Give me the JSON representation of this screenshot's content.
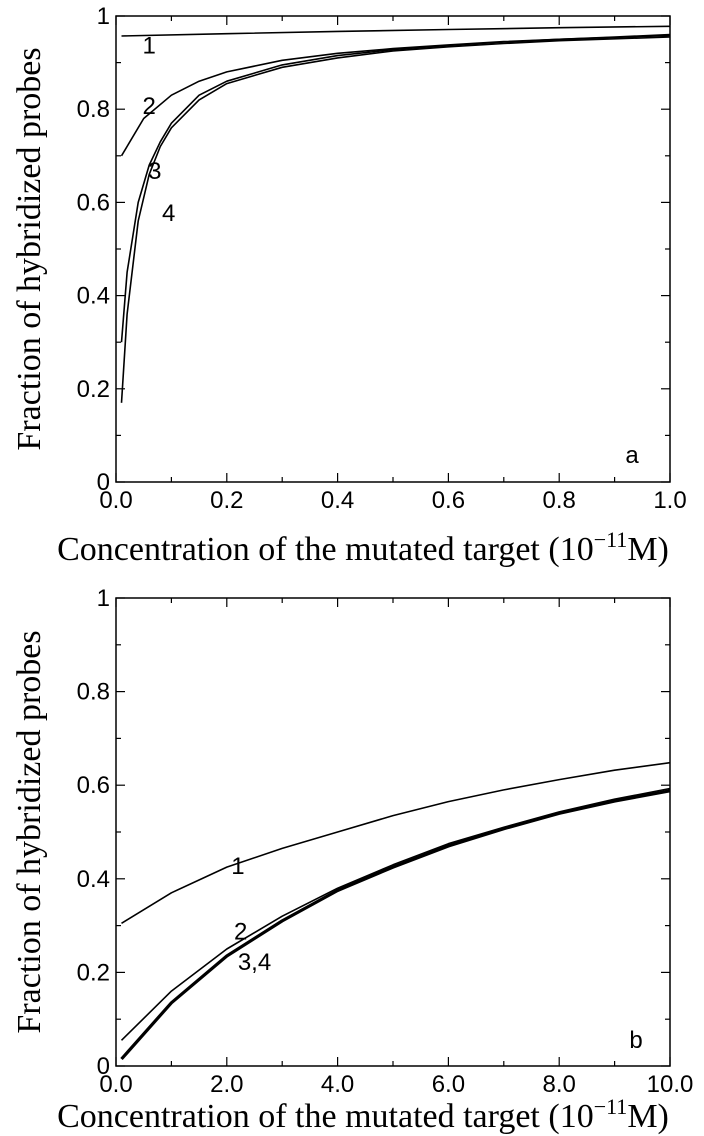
{
  "chart_data": [
    {
      "type": "line",
      "panel_label": "a",
      "xlabel_main": "Concentration of the mutated target (10",
      "xlabel_exp": "−11",
      "xlabel_tail": "M)",
      "ylabel": "Fraction of hybridized probes",
      "xlim": [
        0,
        1.0
      ],
      "ylim": [
        0,
        1
      ],
      "x_ticks": [
        "0.0",
        "0.2",
        "0.4",
        "0.6",
        "0.8",
        "1.0"
      ],
      "x_tick_values": [
        0,
        0.2,
        0.4,
        0.6,
        0.8,
        1.0
      ],
      "y_ticks": [
        "0",
        "0.2",
        "0.4",
        "0.6",
        "0.8",
        "1"
      ],
      "y_tick_values": [
        0,
        0.2,
        0.4,
        0.6,
        0.8,
        1
      ],
      "series": [
        {
          "name": "1",
          "x": [
            0.01,
            0.2,
            0.4,
            0.6,
            0.8,
            1.0
          ],
          "values": [
            0.957,
            0.962,
            0.967,
            0.971,
            0.975,
            0.978
          ]
        },
        {
          "name": "2",
          "x": [
            0.01,
            0.05,
            0.1,
            0.15,
            0.2,
            0.3,
            0.4,
            0.5,
            0.6,
            0.7,
            0.8,
            0.9,
            1.0
          ],
          "values": [
            0.7,
            0.78,
            0.83,
            0.86,
            0.88,
            0.905,
            0.92,
            0.93,
            0.938,
            0.945,
            0.95,
            0.955,
            0.96
          ]
        },
        {
          "name": "3",
          "x": [
            0.01,
            0.02,
            0.04,
            0.06,
            0.08,
            0.1,
            0.15,
            0.2,
            0.3,
            0.4,
            0.5,
            0.6,
            0.7,
            0.8,
            0.9,
            1.0
          ],
          "values": [
            0.3,
            0.45,
            0.6,
            0.68,
            0.73,
            0.77,
            0.83,
            0.86,
            0.895,
            0.915,
            0.928,
            0.937,
            0.944,
            0.95,
            0.954,
            0.958
          ]
        },
        {
          "name": "4",
          "x": [
            0.01,
            0.02,
            0.04,
            0.06,
            0.08,
            0.1,
            0.15,
            0.2,
            0.3,
            0.4,
            0.5,
            0.6,
            0.7,
            0.8,
            0.9,
            1.0
          ],
          "values": [
            0.17,
            0.36,
            0.56,
            0.66,
            0.72,
            0.76,
            0.82,
            0.855,
            0.89,
            0.91,
            0.925,
            0.934,
            0.941,
            0.947,
            0.951,
            0.955
          ]
        }
      ],
      "curve_labels": [
        {
          "text": "1",
          "x": 0.06,
          "y": 0.92
        },
        {
          "text": "2",
          "x": 0.06,
          "y": 0.79
        },
        {
          "text": "3",
          "x": 0.07,
          "y": 0.65
        },
        {
          "text": "4",
          "x": 0.095,
          "y": 0.56
        }
      ]
    },
    {
      "type": "line",
      "panel_label": "b",
      "xlabel_main": "Concentration of the mutated target (10",
      "xlabel_exp": "−11",
      "xlabel_tail": "M)",
      "ylabel": "Fraction of hybridized probes",
      "xlim": [
        0,
        10.0
      ],
      "ylim": [
        0,
        1
      ],
      "x_ticks": [
        "0.0",
        "2.0",
        "4.0",
        "6.0",
        "8.0",
        "10.0"
      ],
      "x_tick_values": [
        0,
        2,
        4,
        6,
        8,
        10
      ],
      "y_ticks": [
        "0",
        "0.2",
        "0.4",
        "0.6",
        "0.8",
        "1"
      ],
      "y_tick_values": [
        0,
        0.2,
        0.4,
        0.6,
        0.8,
        1
      ],
      "series": [
        {
          "name": "1",
          "x": [
            0.1,
            1,
            2,
            3,
            4,
            5,
            6,
            7,
            8,
            9,
            10
          ],
          "values": [
            0.305,
            0.37,
            0.425,
            0.465,
            0.5,
            0.535,
            0.565,
            0.59,
            0.612,
            0.632,
            0.648
          ]
        },
        {
          "name": "2",
          "x": [
            0.1,
            1,
            2,
            3,
            4,
            5,
            6,
            7,
            8,
            9,
            10
          ],
          "values": [
            0.055,
            0.16,
            0.25,
            0.32,
            0.38,
            0.43,
            0.475,
            0.51,
            0.543,
            0.57,
            0.593
          ]
        },
        {
          "name": "3,4",
          "x": [
            0.1,
            1,
            2,
            3,
            4,
            5,
            6,
            7,
            8,
            9,
            10
          ],
          "values": [
            0.015,
            0.135,
            0.235,
            0.31,
            0.375,
            0.425,
            0.47,
            0.507,
            0.54,
            0.566,
            0.588
          ]
        }
      ],
      "curve_labels": [
        {
          "text": "1",
          "x": 2.2,
          "y": 0.41
        },
        {
          "text": "2",
          "x": 2.25,
          "y": 0.27
        },
        {
          "text": "3,4",
          "x": 2.5,
          "y": 0.205
        }
      ]
    }
  ]
}
